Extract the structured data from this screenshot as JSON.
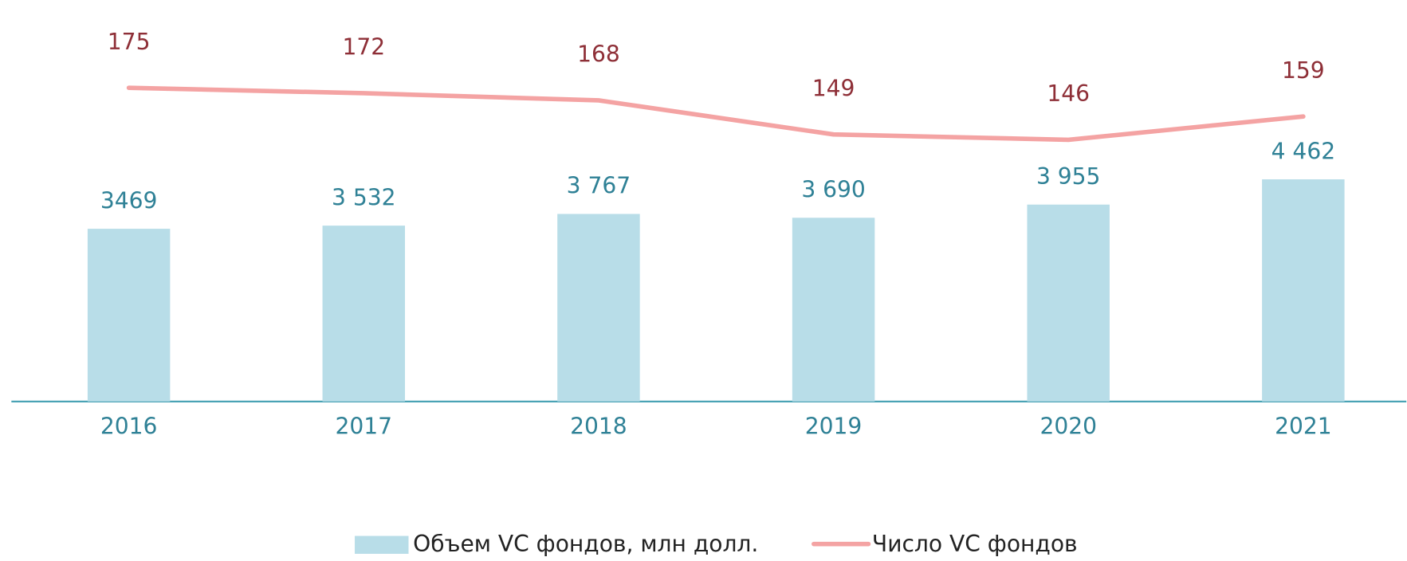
{
  "chart_data": {
    "type": "bar+line",
    "categories": [
      "2016",
      "2017",
      "2018",
      "2019",
      "2020",
      "2021"
    ],
    "series": [
      {
        "name": "Объем VC фондов, млн долл.",
        "type": "bar",
        "color": "#b8dde8",
        "label_color": "#2f8196",
        "axis": "y",
        "values": [
          3469,
          3532,
          3767,
          3690,
          3955,
          4462
        ],
        "value_labels": [
          "3469",
          "3 532",
          "3 767",
          "3 690",
          "3 955",
          "4 462"
        ]
      },
      {
        "name": "Число  VC фондов",
        "type": "line",
        "color": "#f4a3a3",
        "label_color": "#8e2f37",
        "axis": "y2",
        "values": [
          175,
          172,
          168,
          149,
          146,
          159
        ]
      }
    ],
    "ylim": [
      0,
      7200
    ],
    "y2lim": [
      0,
      200
    ],
    "legend": "bottom"
  }
}
